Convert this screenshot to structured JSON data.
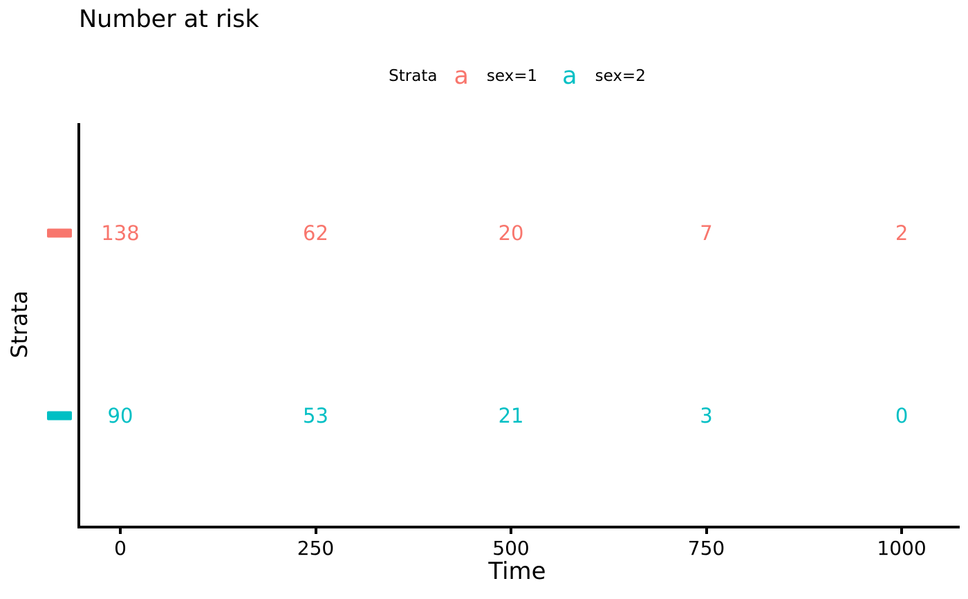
{
  "title": "Number at risk",
  "legend": {
    "title": "Strata",
    "key_glyph": "a",
    "items": [
      {
        "label": "sex=1",
        "color": "#F8766D"
      },
      {
        "label": "sex=2",
        "color": "#00BFC4"
      }
    ]
  },
  "axes": {
    "x_label": "Time",
    "y_label": "Strata",
    "x_tick_labels": [
      "0",
      "250",
      "500",
      "750",
      "1000"
    ]
  },
  "chart_data": {
    "type": "table",
    "title": "Number at risk",
    "xlabel": "Time",
    "ylabel": "Strata",
    "x": [
      0,
      250,
      500,
      750,
      1000
    ],
    "xlim": [
      0,
      1000
    ],
    "grid": false,
    "legend_position": "top",
    "series": [
      {
        "name": "sex=1",
        "color": "#F8766D",
        "values": [
          138,
          62,
          20,
          7,
          2
        ]
      },
      {
        "name": "sex=2",
        "color": "#00BFC4",
        "values": [
          90,
          53,
          21,
          3,
          0
        ]
      }
    ]
  }
}
